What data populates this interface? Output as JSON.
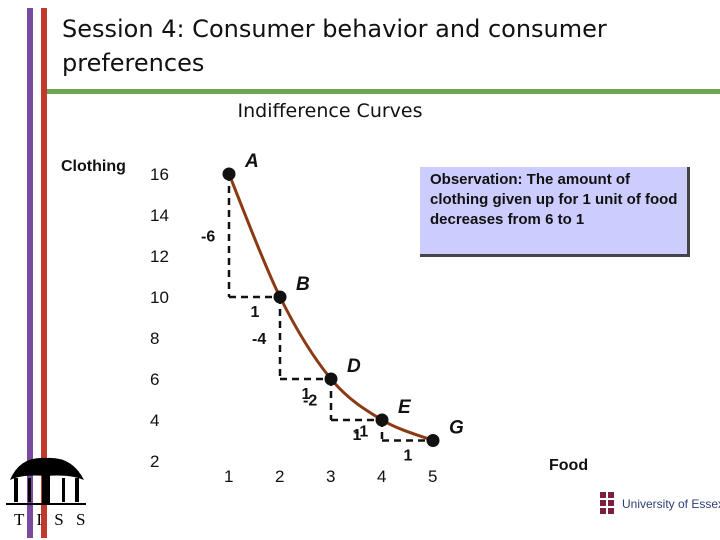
{
  "slide": {
    "title": "Session 4: Consumer behavior and consumer preferences",
    "chart_title": "Indifference Curves"
  },
  "observation": "Observation: The amount of clothing given up for 1 unit of food decreases from 6 to 1",
  "logos": {
    "tiss": "T I S S",
    "essex": "University of Essex"
  },
  "colors": {
    "curve": "#8b3a14",
    "accent_purple": "#7a4a9e",
    "accent_red": "#c0392b",
    "accent_green": "#6aa84f",
    "observation_bg": "#ccccff"
  },
  "chart_data": {
    "type": "line",
    "title": "Indifference Curves",
    "xlabel": "Food",
    "ylabel": "Clothing",
    "yticks": [
      2,
      4,
      6,
      8,
      10,
      12,
      14,
      16
    ],
    "xticks": [
      1,
      2,
      3,
      4,
      5
    ],
    "xlim": [
      0,
      5.5
    ],
    "ylim": [
      2,
      16
    ],
    "points": [
      {
        "label": "A",
        "x": 1,
        "y": 16
      },
      {
        "label": "B",
        "x": 2,
        "y": 10
      },
      {
        "label": "D",
        "x": 3,
        "y": 6
      },
      {
        "label": "E",
        "x": 4,
        "y": 4
      },
      {
        "label": "G",
        "x": 5,
        "y": 3
      }
    ],
    "changes": [
      {
        "dy": "-6",
        "dx": "1"
      },
      {
        "dy": "-4",
        "dx": "1"
      },
      {
        "dy": "-2",
        "dx": "1"
      },
      {
        "dy": "-1",
        "dx": "1"
      }
    ]
  }
}
